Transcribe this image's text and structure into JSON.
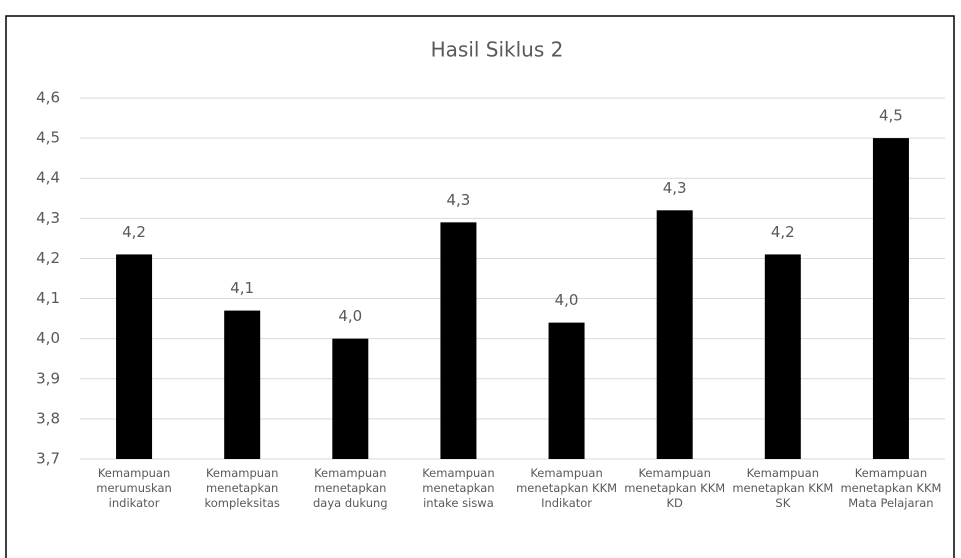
{
  "chart_data": {
    "type": "bar",
    "title": "Hasil Siklus 2",
    "categories": [
      "Kemampuan merumuskan indikator",
      "Kemampuan menetapkan kompleksitas",
      "Kemampuan menetapkan daya dukung",
      "Kemampuan menetapkan intake siswa",
      "Kemampuan menetapkan KKM Indikator",
      "Kemampuan menetapkan KKM KD",
      "Kemampuan menetapkan KKM SK",
      "Kemampuan menetapkan KKM Mata Pelajaran"
    ],
    "values": [
      4.21,
      4.07,
      4.0,
      4.29,
      4.04,
      4.32,
      4.21,
      4.5
    ],
    "value_labels": [
      "4,2",
      "4,1",
      "4,0",
      "4,3",
      "4,0",
      "4,3",
      "4,2",
      "4,5"
    ],
    "color": "#000000",
    "ylim": [
      3.7,
      4.6
    ],
    "yticks": [
      {
        "value": 3.7,
        "label": "3,7"
      },
      {
        "value": 3.8,
        "label": "3,8"
      },
      {
        "value": 3.9,
        "label": "3,9"
      },
      {
        "value": 4.0,
        "label": "4,0"
      },
      {
        "value": 4.1,
        "label": "4,1"
      },
      {
        "value": 4.2,
        "label": "4,2"
      },
      {
        "value": 4.3,
        "label": "4,3"
      },
      {
        "value": 4.4,
        "label": "4,4"
      },
      {
        "value": 4.5,
        "label": "4,5"
      },
      {
        "value": 4.6,
        "label": "4,6"
      }
    ],
    "grid": true
  }
}
